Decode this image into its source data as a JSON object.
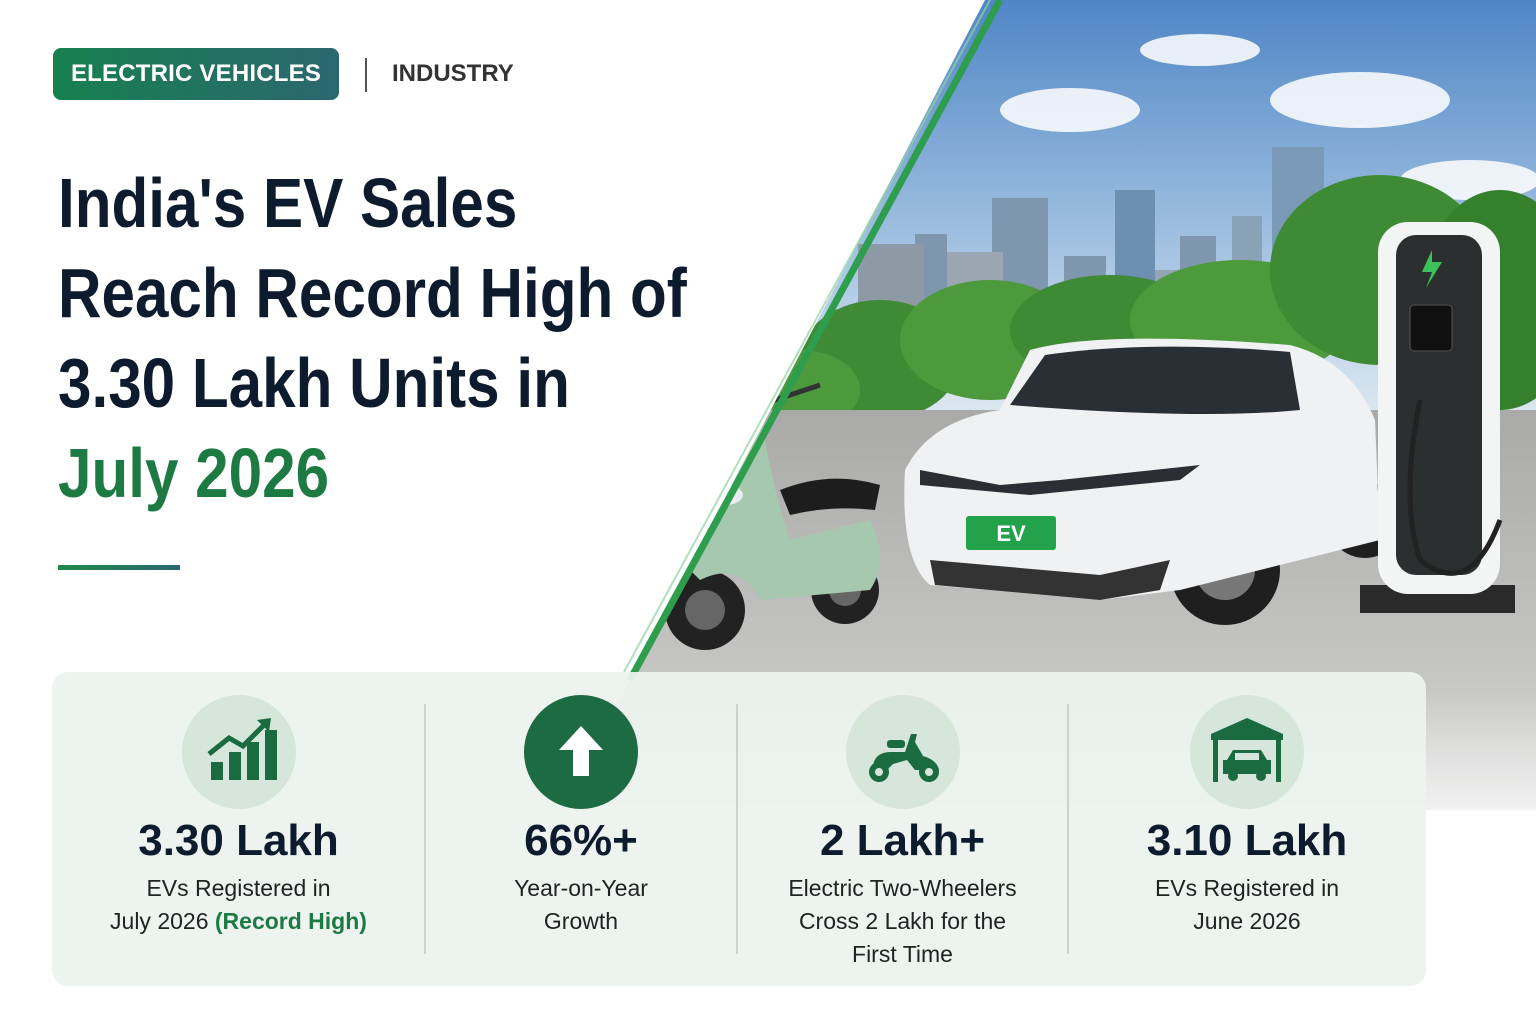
{
  "header": {
    "tag": "ELECTRIC VEHICLES",
    "category": "INDUSTRY"
  },
  "title": {
    "lines": [
      "India's EV Sales",
      "Reach Record High of",
      "3.30 Lakh Units in"
    ],
    "highlight": "July 2026"
  },
  "photo": {
    "plate": "EV"
  },
  "stats": [
    {
      "value": "3.30 Lakh",
      "lines": [
        "EVs Registered in",
        "July 2026"
      ],
      "highlight": "(Record High)"
    },
    {
      "value": "66%+",
      "lines": [
        "Year-on-Year",
        "Growth"
      ]
    },
    {
      "value": "2 Lakh+",
      "lines": [
        "Electric Two-Wheelers",
        "Cross 2 Lakh for the",
        "First Time"
      ]
    },
    {
      "value": "3.10 Lakh",
      "lines": [
        "EVs Registered in",
        "June 2026"
      ]
    }
  ]
}
